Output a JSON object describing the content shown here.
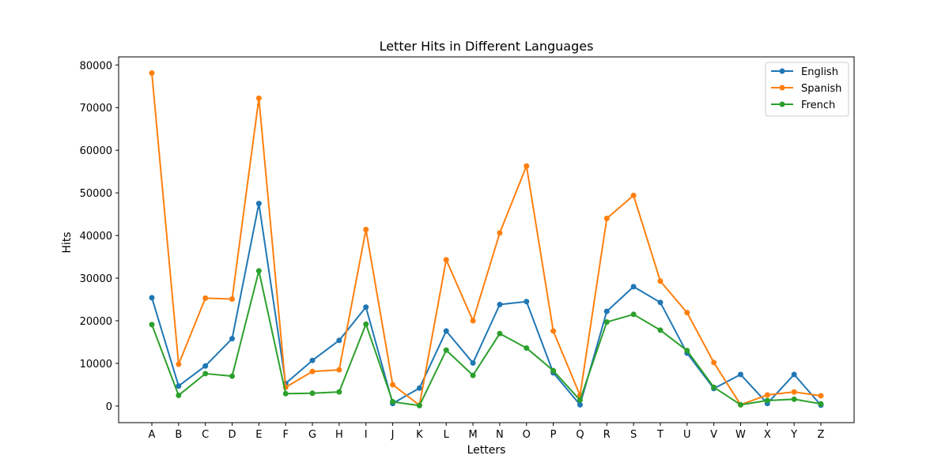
{
  "chart_data": {
    "type": "line",
    "title": "Letter Hits in Different Languages",
    "xlabel": "Letters",
    "ylabel": "Hits",
    "ylim": [
      -3900,
      81900
    ],
    "yticks": [
      0,
      10000,
      20000,
      30000,
      40000,
      50000,
      60000,
      70000,
      80000
    ],
    "grid": false,
    "legend_position": "top-right",
    "categories": [
      "A",
      "B",
      "C",
      "D",
      "E",
      "F",
      "G",
      "H",
      "I",
      "J",
      "K",
      "L",
      "M",
      "N",
      "O",
      "P",
      "Q",
      "R",
      "S",
      "T",
      "U",
      "V",
      "W",
      "X",
      "Y",
      "Z"
    ],
    "series": [
      {
        "name": "English",
        "color": "#1f77b4",
        "values": [
          25400,
          4700,
          9400,
          15800,
          47500,
          5300,
          10700,
          15400,
          23200,
          600,
          4200,
          17600,
          10100,
          23800,
          24500,
          7800,
          300,
          22200,
          28000,
          24300,
          12400,
          4100,
          7400,
          600,
          7400,
          200
        ]
      },
      {
        "name": "Spanish",
        "color": "#ff7f0e",
        "values": [
          78100,
          9800,
          25300,
          25100,
          72200,
          4400,
          8100,
          8500,
          41400,
          5000,
          200,
          34300,
          20000,
          40600,
          56300,
          17600,
          2500,
          44000,
          49400,
          29300,
          21900,
          10200,
          300,
          2600,
          3300,
          2400
        ]
      },
      {
        "name": "French",
        "color": "#2ca02c",
        "values": [
          19100,
          2500,
          7600,
          7000,
          31700,
          2900,
          3000,
          3300,
          19200,
          1000,
          100,
          13100,
          7200,
          17000,
          13600,
          8300,
          1400,
          19700,
          21500,
          17800,
          13000,
          4400,
          300,
          1300,
          1600,
          500
        ]
      }
    ]
  }
}
